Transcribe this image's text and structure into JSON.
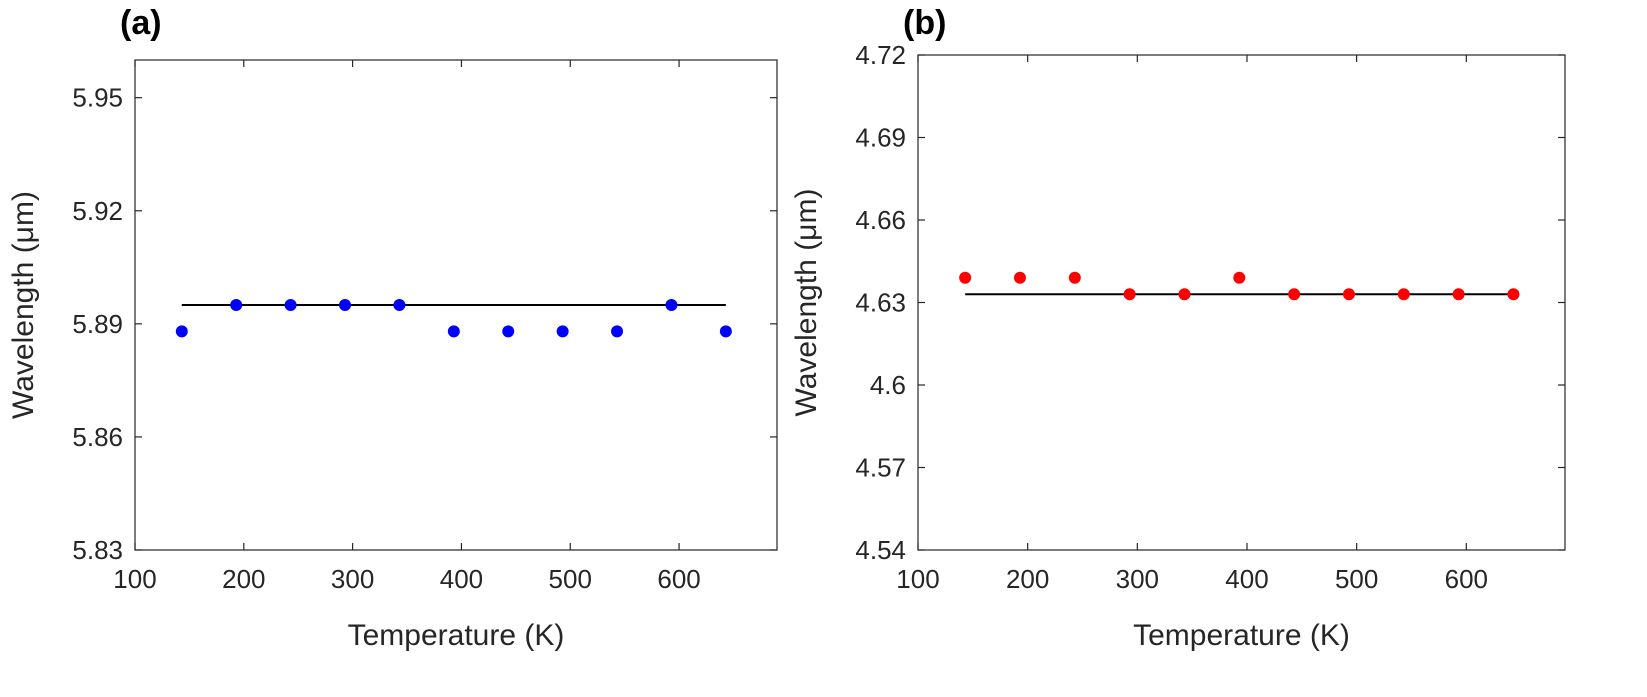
{
  "chart_data": [
    {
      "type": "scatter",
      "panel_label": "(a)",
      "x_label": "Temperature (K)",
      "y_label": "Wavelength (μm)",
      "x": [
        143,
        193,
        243,
        293,
        343,
        393,
        443,
        493,
        543,
        593,
        643
      ],
      "series": [
        {
          "color": "#0000ff",
          "values": [
            5.888,
            5.895,
            5.895,
            5.895,
            5.895,
            5.888,
            5.888,
            5.888,
            5.888,
            5.895,
            5.888
          ]
        }
      ],
      "fit": {
        "color": "#000000",
        "x": [
          143,
          643
        ],
        "values": [
          5.895,
          5.895
        ]
      },
      "xlim": [
        100,
        690
      ],
      "xticks": [
        100,
        200,
        300,
        400,
        500,
        600
      ],
      "ylim": [
        5.83,
        5.96
      ],
      "yticks": [
        5.83,
        5.86,
        5.89,
        5.92,
        5.95
      ]
    },
    {
      "type": "scatter",
      "panel_label": "(b)",
      "x_label": "Temperature (K)",
      "y_label": "Wavelength (μm)",
      "x": [
        143,
        193,
        243,
        293,
        343,
        393,
        443,
        493,
        543,
        593,
        643
      ],
      "series": [
        {
          "color": "#ff0000",
          "values": [
            4.639,
            4.639,
            4.639,
            4.633,
            4.633,
            4.639,
            4.633,
            4.633,
            4.633,
            4.633,
            4.633
          ]
        }
      ],
      "fit": {
        "color": "#000000",
        "x": [
          143,
          643
        ],
        "values": [
          4.633,
          4.633
        ]
      },
      "xlim": [
        100,
        690
      ],
      "xticks": [
        100,
        200,
        300,
        400,
        500,
        600
      ],
      "ylim": [
        4.54,
        4.72
      ],
      "yticks": [
        4.54,
        4.57,
        4.6,
        4.63,
        4.66,
        4.69,
        4.72
      ]
    }
  ]
}
